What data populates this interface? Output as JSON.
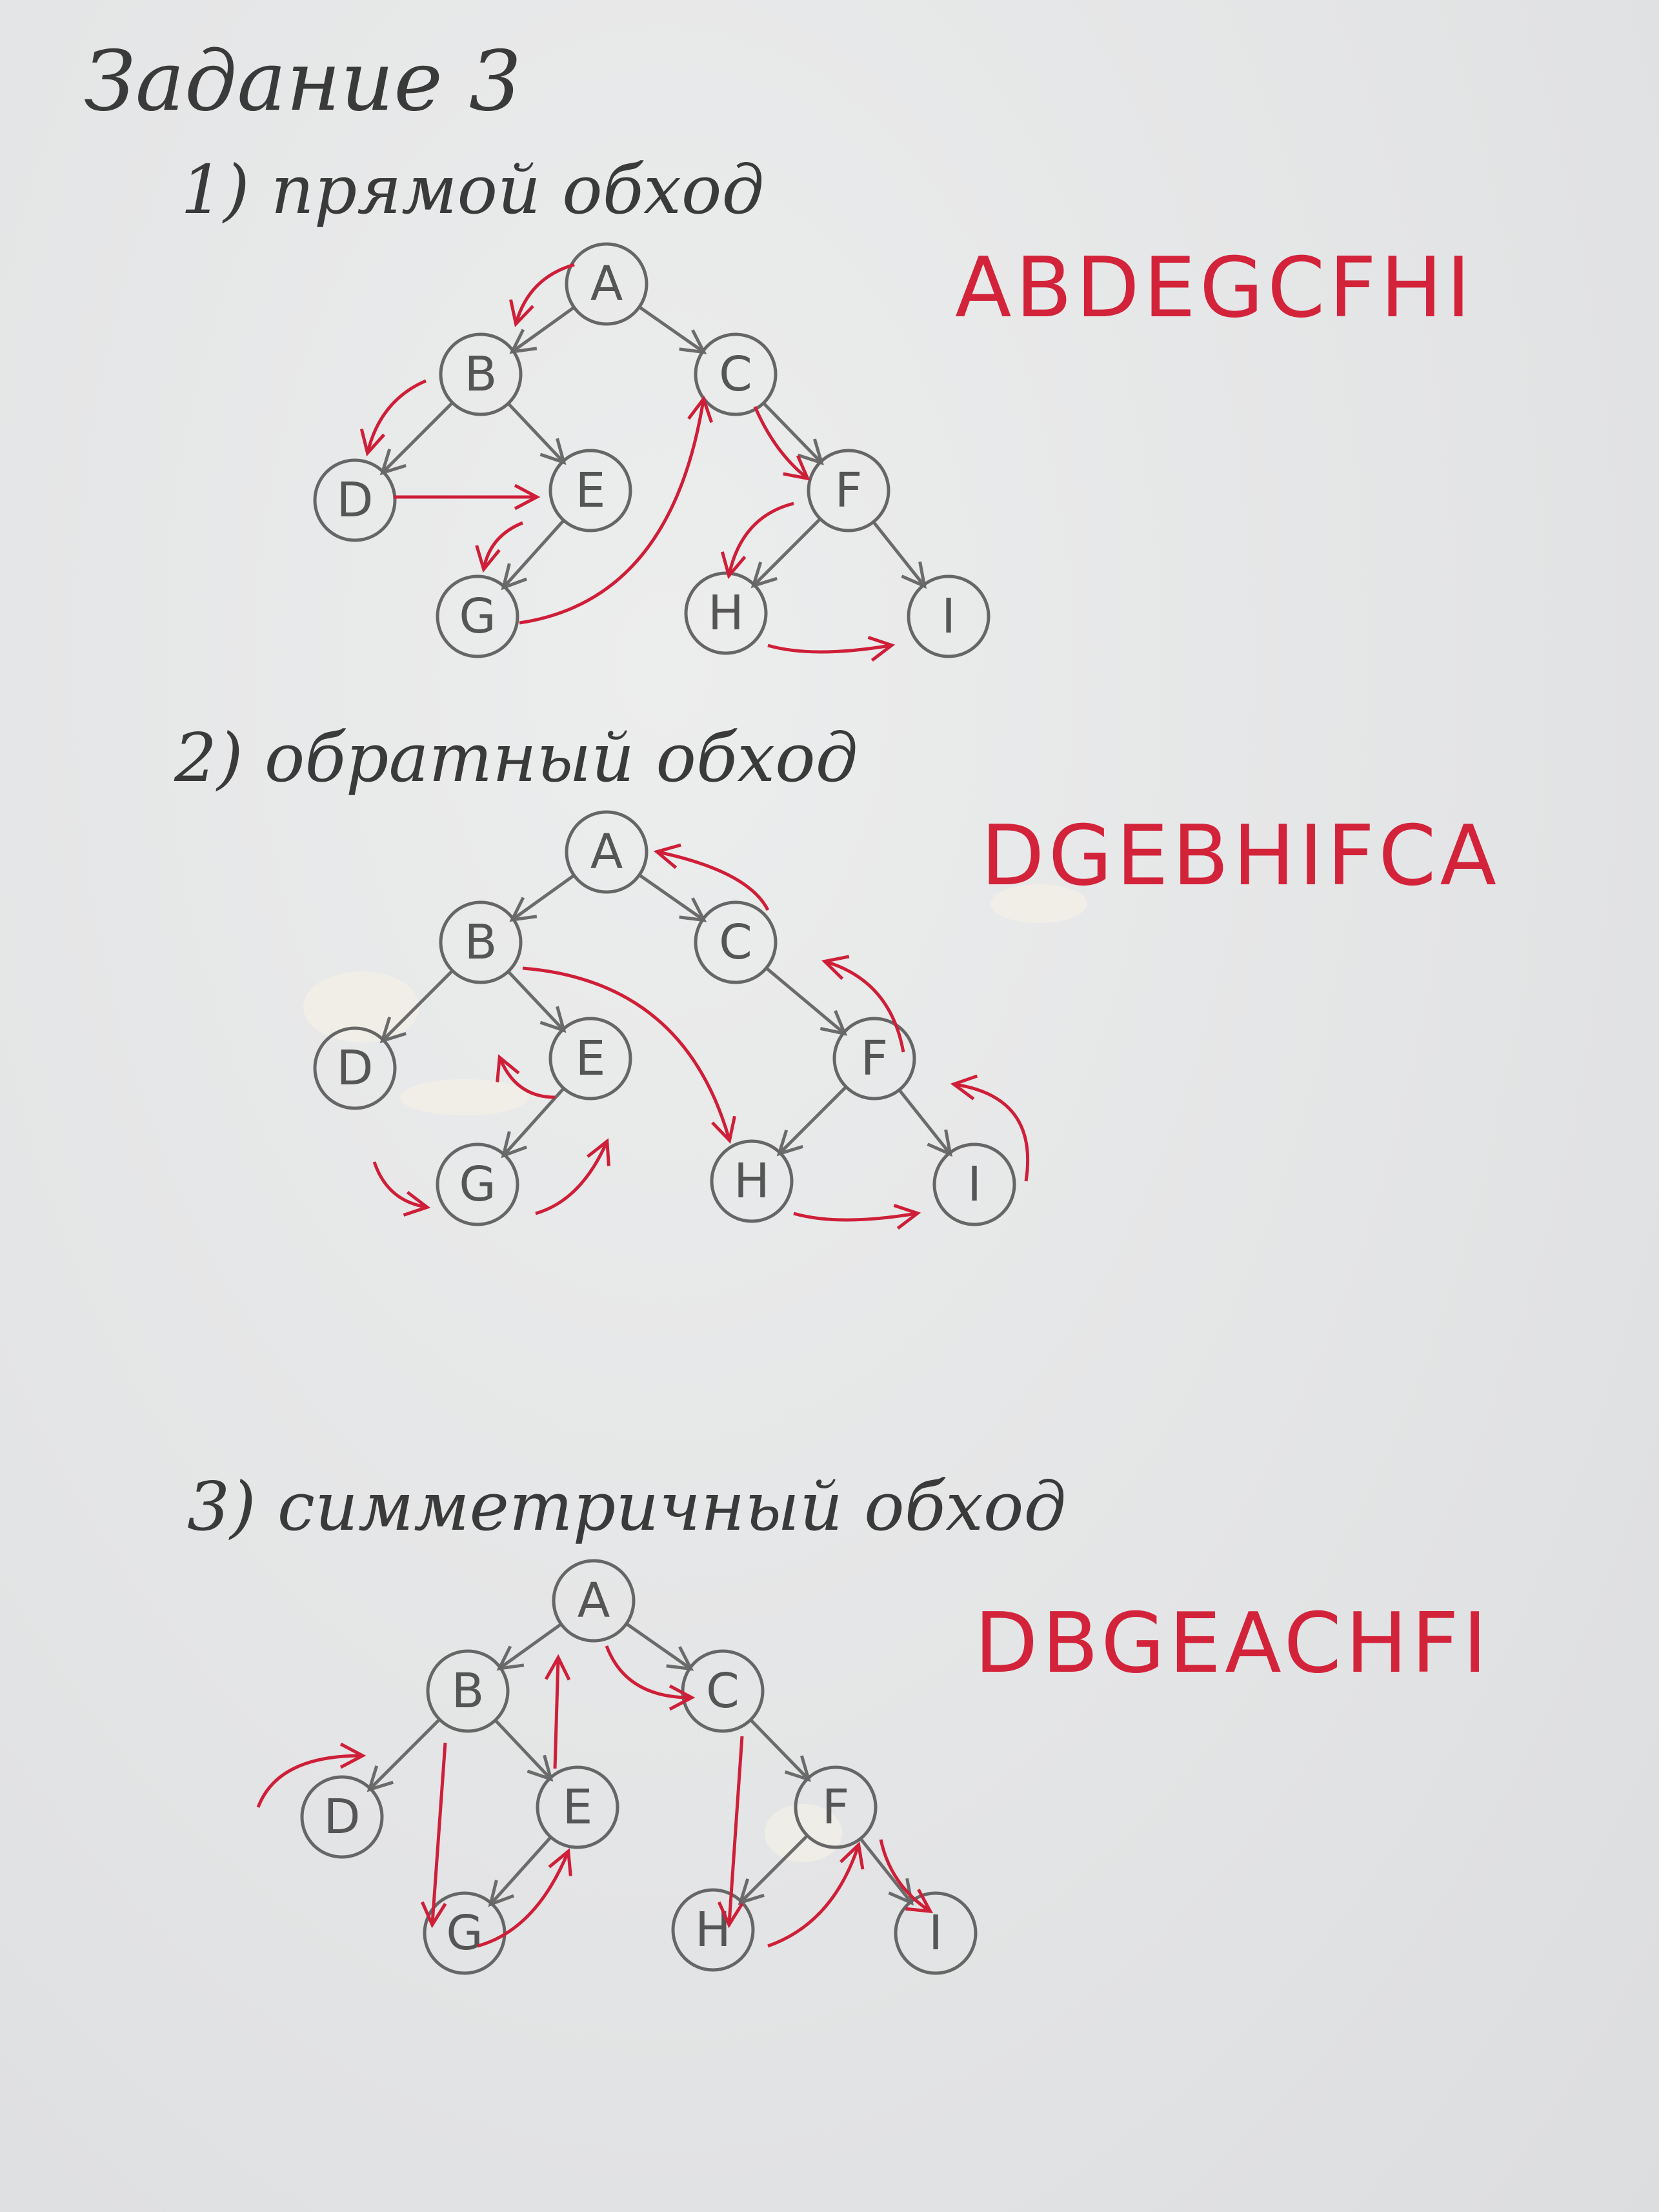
{
  "title": "Задание 3",
  "sections": [
    {
      "heading": "1) прямой обход",
      "result": "ABDEGCFHI"
    },
    {
      "heading": "2) обратный обход",
      "result": "DGEBHIFCA"
    },
    {
      "heading": "3) симметричный обход",
      "result": "DBGEACHFI"
    }
  ],
  "tree": {
    "nodes": [
      "A",
      "B",
      "C",
      "D",
      "E",
      "G",
      "F",
      "H",
      "I"
    ],
    "edges": [
      [
        "A",
        "B"
      ],
      [
        "A",
        "C"
      ],
      [
        "B",
        "D"
      ],
      [
        "B",
        "E"
      ],
      [
        "E",
        "G"
      ],
      [
        "C",
        "F"
      ],
      [
        "F",
        "H"
      ],
      [
        "F",
        "I"
      ]
    ]
  },
  "colors": {
    "pencil": "#666666",
    "traversal": "#cf1f38"
  }
}
